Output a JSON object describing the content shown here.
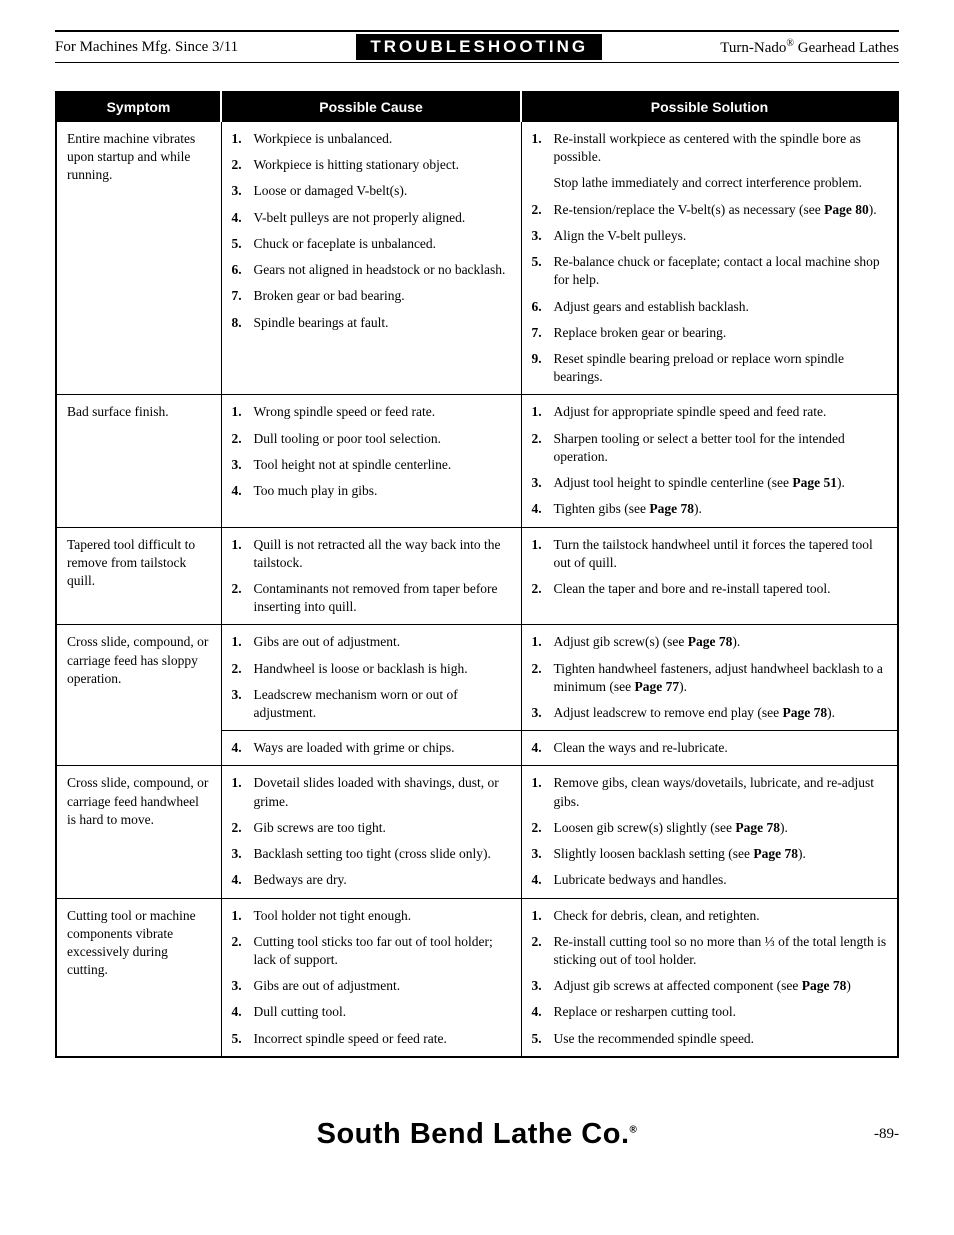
{
  "header": {
    "left": "For Machines Mfg. Since 3/11",
    "center": "TROUBLESHOOTING",
    "right_prefix": "Turn-Nado",
    "right_suffix": " Gearhead Lathes"
  },
  "table": {
    "headers": {
      "symptom": "Symptom",
      "cause": "Possible Cause",
      "solution": "Possible Solution"
    },
    "rows": [
      {
        "symptom": "Entire machine vibrates upon startup and while running.",
        "causes": [
          "Workpiece is unbalanced.",
          "Workpiece is hitting stationary object.",
          "Loose or damaged V-belt(s).",
          "V-belt pulleys are not properly aligned.",
          "Chuck or faceplate is unbalanced.",
          "Gears not aligned in headstock or no backlash.",
          "Broken gear or bad bearing.",
          "Spindle bearings at fault."
        ],
        "solutions": [
          {
            "n": "1.",
            "t": "Re-install workpiece as centered with the spindle bore as possible."
          },
          {
            "n": "",
            "t": "Stop lathe immediately and correct interference problem."
          },
          {
            "n": "2.",
            "t": "Re-tension/replace the V-belt(s) as necessary (see <b>Page 80</b>)."
          },
          {
            "n": "3.",
            "t": "Align the V-belt pulleys."
          },
          {
            "n": "5.",
            "t": "Re-balance chuck or faceplate; contact a local machine shop for help."
          },
          {
            "n": "6.",
            "t": "Adjust gears and establish backlash."
          },
          {
            "n": "7.",
            "t": "Replace broken gear or bearing."
          },
          {
            "n": "9.",
            "t": "Reset spindle bearing preload or replace worn spindle bearings."
          }
        ]
      },
      {
        "symptom": "Bad surface finish.",
        "causes": [
          "Wrong spindle speed or feed rate.",
          "Dull tooling or poor tool selection.",
          "Tool height not at spindle centerline.",
          "Too much play in gibs."
        ],
        "solutions": [
          {
            "n": "1.",
            "t": "Adjust for appropriate spindle speed and feed rate."
          },
          {
            "n": "2.",
            "t": "Sharpen tooling or select a better tool for the intended operation."
          },
          {
            "n": "3.",
            "t": "Adjust tool height to spindle centerline (see <b>Page 51</b>)."
          },
          {
            "n": "4.",
            "t": "Tighten gibs (see <b>Page 78</b>)."
          }
        ]
      },
      {
        "symptom": "Tapered tool difficult to remove from tailstock quill.",
        "causes": [
          "Quill is not retracted all the way back into the tailstock.",
          "Contaminants not removed from taper before inserting into quill."
        ],
        "solutions": [
          {
            "n": "1.",
            "t": "Turn the tailstock handwheel until it forces the tapered tool out of quill."
          },
          {
            "n": "2.",
            "t": "Clean the taper and bore and re-install tapered tool."
          }
        ]
      },
      {
        "symptom": "Cross slide, compound, or carriage feed has sloppy operation.",
        "split": true,
        "causes_a": [
          "Gibs are out of adjustment.",
          "Handwheel is loose or backlash is high.",
          "Leadscrew mechanism worn or out of adjustment."
        ],
        "causes_b": [
          "Ways are loaded with grime or chips."
        ],
        "solutions_a": [
          {
            "n": "1.",
            "t": "Adjust gib screw(s) (see <b>Page 78</b>)."
          },
          {
            "n": "2.",
            "t": "Tighten handwheel fasteners, adjust handwheel backlash to a minimum (see <b>Page 77</b>)."
          },
          {
            "n": "3.",
            "t": "Adjust leadscrew to remove end play (see <b>Page 78</b>)."
          }
        ],
        "solutions_b": [
          {
            "n": "4.",
            "t": "Clean the ways and re-lubricate."
          }
        ]
      },
      {
        "symptom": "Cross slide, compound, or carriage feed handwheel is hard to move.",
        "causes": [
          "Dovetail slides loaded with shavings, dust, or grime.",
          "Gib screws are too tight.",
          "Backlash setting too tight (cross slide only).",
          "Bedways are dry."
        ],
        "solutions": [
          {
            "n": "1.",
            "t": "Remove gibs, clean ways/dovetails, lubricate, and re-adjust gibs."
          },
          {
            "n": "2.",
            "t": "Loosen gib screw(s) slightly (see <b>Page 78</b>)."
          },
          {
            "n": "3.",
            "t": "Slightly loosen backlash setting (see <b>Page 78</b>)."
          },
          {
            "n": "4.",
            "t": "Lubricate bedways and handles."
          }
        ]
      },
      {
        "symptom": "Cutting tool or machine components vibrate excessively during cutting.",
        "causes": [
          "Tool holder not tight enough.",
          "Cutting tool sticks too far out of tool holder; lack of support.",
          "Gibs are out of adjustment.",
          "Dull cutting tool.",
          "Incorrect spindle speed or feed rate."
        ],
        "solutions": [
          {
            "n": "1.",
            "t": "Check for debris, clean, and retighten."
          },
          {
            "n": "2.",
            "t": "Re-install cutting tool so no more than ⅓ of the total length is sticking out of tool holder."
          },
          {
            "n": "3.",
            "t": "Adjust gib screws at affected component (see <b>Page 78</b>)"
          },
          {
            "n": "4.",
            "t": "Replace or resharpen cutting tool."
          },
          {
            "n": "5.",
            "t": "Use the recommended spindle speed."
          }
        ]
      }
    ]
  },
  "footer": {
    "brand": "South Bend Lathe Co.",
    "page": "-89-"
  }
}
